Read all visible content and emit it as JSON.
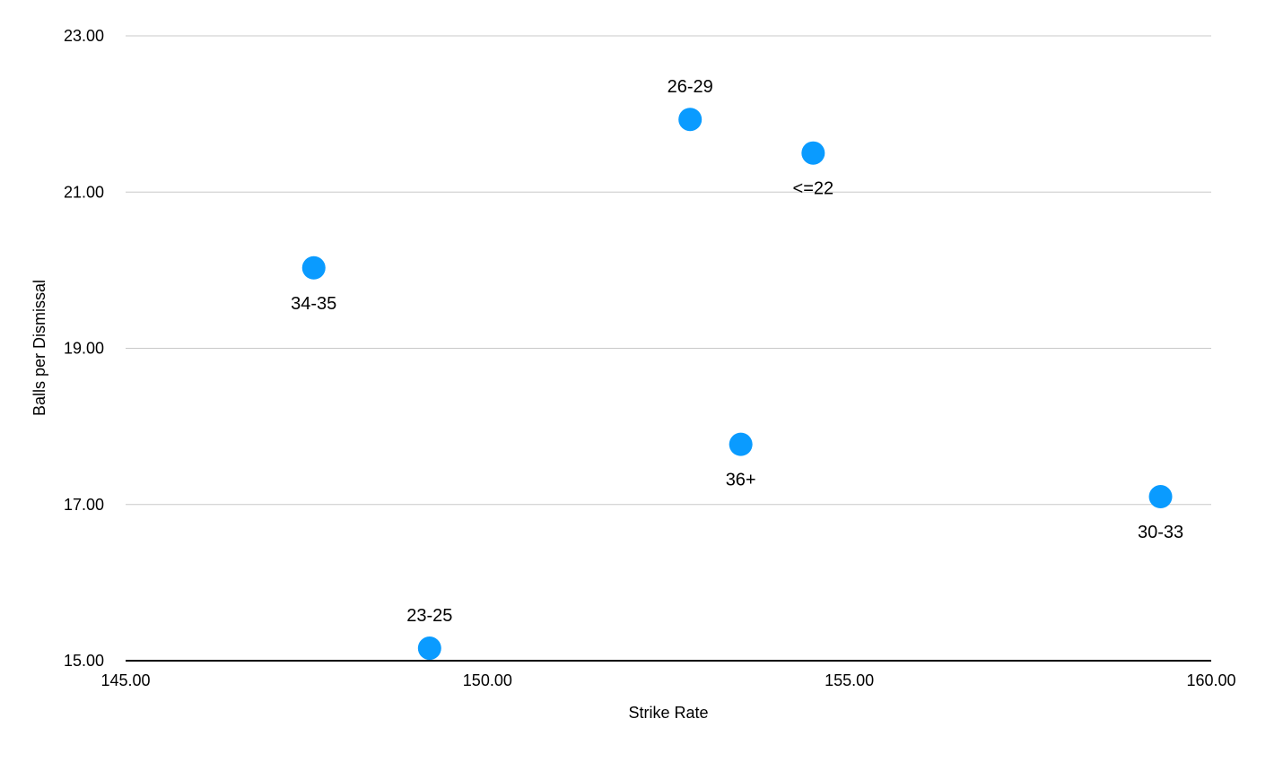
{
  "chart_data": {
    "type": "scatter",
    "title": "",
    "xlabel": "Strike Rate",
    "ylabel": "Balls per Dismissal",
    "xlim": [
      145,
      160
    ],
    "ylim": [
      15,
      23
    ],
    "x_ticks": [
      "145.00",
      "150.00",
      "155.00",
      "160.00"
    ],
    "y_ticks": [
      "15.00",
      "17.00",
      "19.00",
      "21.00",
      "23.00"
    ],
    "grid": "horizontal",
    "legend": "none",
    "point_color": "#0a9bff",
    "points": [
      {
        "label": "26-29",
        "x": 152.8,
        "y": 21.93,
        "label_position": "above"
      },
      {
        "label": "<=22",
        "x": 154.5,
        "y": 21.5,
        "label_position": "below"
      },
      {
        "label": "34-35",
        "x": 147.6,
        "y": 20.03,
        "label_position": "below"
      },
      {
        "label": "36+",
        "x": 153.5,
        "y": 17.77,
        "label_position": "below"
      },
      {
        "label": "30-33",
        "x": 159.3,
        "y": 17.1,
        "label_position": "below"
      },
      {
        "label": "23-25",
        "x": 149.2,
        "y": 15.16,
        "label_position": "above"
      }
    ]
  }
}
